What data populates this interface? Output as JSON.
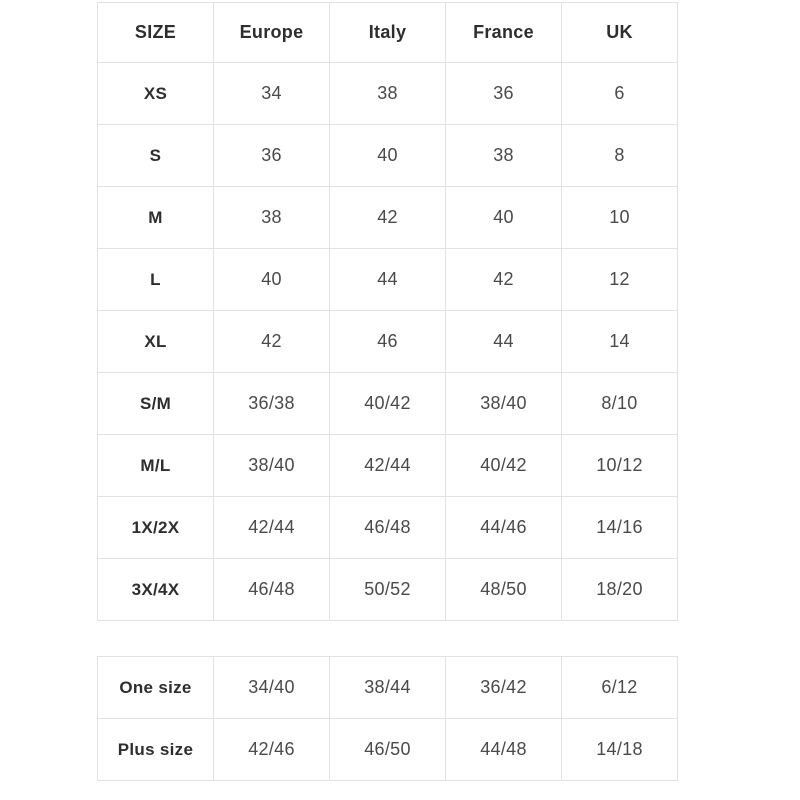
{
  "colors": {
    "background": "#ffffff",
    "border": "#e2e2e2",
    "label_text": "#2e2e2e",
    "value_text": "#4a4a4a"
  },
  "size_chart": {
    "columns": [
      "SIZE",
      "Europe",
      "Italy",
      "France",
      "UK"
    ],
    "rows": [
      {
        "label": "XS",
        "values": [
          "34",
          "38",
          "36",
          "6"
        ]
      },
      {
        "label": "S",
        "values": [
          "36",
          "40",
          "38",
          "8"
        ]
      },
      {
        "label": "M",
        "values": [
          "38",
          "42",
          "40",
          "10"
        ]
      },
      {
        "label": "L",
        "values": [
          "40",
          "44",
          "42",
          "12"
        ]
      },
      {
        "label": "XL",
        "values": [
          "42",
          "46",
          "44",
          "14"
        ]
      },
      {
        "label": "S/M",
        "values": [
          "36/38",
          "40/42",
          "38/40",
          "8/10"
        ]
      },
      {
        "label": "M/L",
        "values": [
          "38/40",
          "42/44",
          "40/42",
          "10/12"
        ]
      },
      {
        "label": "1X/2X",
        "values": [
          "42/44",
          "46/48",
          "44/46",
          "14/16"
        ]
      },
      {
        "label": "3X/4X",
        "values": [
          "46/48",
          "50/52",
          "48/50",
          "18/20"
        ]
      }
    ]
  },
  "special_sizes": {
    "rows": [
      {
        "label": "One size",
        "values": [
          "34/40",
          "38/44",
          "36/42",
          "6/12"
        ]
      },
      {
        "label": "Plus size",
        "values": [
          "42/46",
          "46/50",
          "44/48",
          "14/18"
        ]
      }
    ]
  }
}
